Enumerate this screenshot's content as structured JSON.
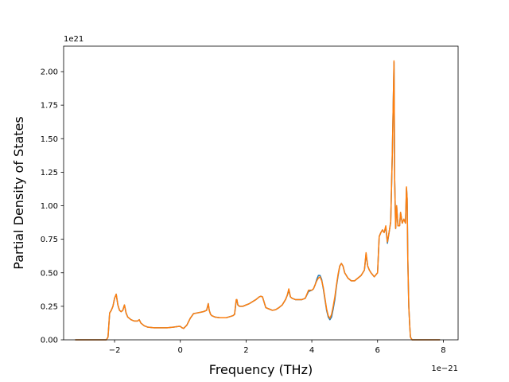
{
  "chart_data": {
    "type": "line",
    "title": "",
    "xlabel": "Frequency (THz)",
    "ylabel": "Partial Density of States",
    "x_offset_label": "1e−21",
    "y_offset_label": "1e21",
    "xlim": [
      -3.55,
      8.45
    ],
    "ylim": [
      0.0,
      2.19
    ],
    "x_ticks": [
      -2,
      0,
      2,
      4,
      6,
      8
    ],
    "x_tick_labels": [
      "−2",
      "0",
      "2",
      "4",
      "6",
      "8"
    ],
    "y_ticks": [
      0.0,
      0.25,
      0.5,
      0.75,
      1.0,
      1.25,
      1.5,
      1.75,
      2.0
    ],
    "y_tick_labels": [
      "0.00",
      "0.25",
      "0.50",
      "0.75",
      "1.00",
      "1.25",
      "1.50",
      "1.75",
      "2.00"
    ],
    "grid": false,
    "legend": "none",
    "series": [
      {
        "color": "#1f77b4",
        "x": [
          -3.2,
          -2.3,
          -2.25,
          -2.2,
          -2.15,
          -2.1,
          -2.05,
          -2.0,
          -1.95,
          -1.9,
          -1.85,
          -1.8,
          -1.75,
          -1.7,
          -1.65,
          -1.6,
          -1.55,
          -1.5,
          -1.45,
          -1.4,
          -1.3,
          -1.25,
          -1.2,
          -1.1,
          -1.0,
          -0.8,
          -0.6,
          -0.4,
          -0.2,
          -0.05,
          0.0,
          0.05,
          0.1,
          0.2,
          0.3,
          0.4,
          0.5,
          0.6,
          0.7,
          0.8,
          0.85,
          0.88,
          0.92,
          0.96,
          1.05,
          1.2,
          1.4,
          1.6,
          1.65,
          1.7,
          1.72,
          1.75,
          1.8,
          1.9,
          2.1,
          2.3,
          2.4,
          2.45,
          2.5,
          2.6,
          2.7,
          2.8,
          2.9,
          3.0,
          3.1,
          3.2,
          3.25,
          3.3,
          3.35,
          3.4,
          3.5,
          3.6,
          3.7,
          3.8,
          3.9,
          4.0,
          4.05,
          4.1,
          4.15,
          4.2,
          4.25,
          4.3,
          4.35,
          4.4,
          4.45,
          4.5,
          4.55,
          4.6,
          4.65,
          4.7,
          4.75,
          4.8,
          4.85,
          4.9,
          4.95,
          5.0,
          5.05,
          5.1,
          5.2,
          5.3,
          5.4,
          5.5,
          5.6,
          5.65,
          5.7,
          5.75,
          5.8,
          5.9,
          6.0,
          6.05,
          6.1,
          6.15,
          6.2,
          6.25,
          6.3,
          6.35,
          6.4,
          6.45,
          6.5,
          6.52,
          6.55,
          6.58,
          6.62,
          6.67,
          6.7,
          6.75,
          6.8,
          6.85,
          6.88,
          6.9,
          6.92,
          6.95,
          6.98,
          7.0,
          7.05,
          7.1,
          7.2,
          7.5,
          7.9
        ],
        "y": [
          0.0,
          0.0,
          0.0,
          0.02,
          0.2,
          0.22,
          0.25,
          0.31,
          0.34,
          0.26,
          0.22,
          0.21,
          0.22,
          0.26,
          0.2,
          0.17,
          0.16,
          0.15,
          0.145,
          0.14,
          0.14,
          0.15,
          0.125,
          0.105,
          0.095,
          0.09,
          0.09,
          0.09,
          0.095,
          0.1,
          0.1,
          0.09,
          0.085,
          0.11,
          0.16,
          0.195,
          0.2,
          0.205,
          0.21,
          0.22,
          0.27,
          0.22,
          0.19,
          0.18,
          0.17,
          0.165,
          0.165,
          0.18,
          0.19,
          0.29,
          0.3,
          0.26,
          0.25,
          0.25,
          0.27,
          0.3,
          0.32,
          0.325,
          0.32,
          0.24,
          0.23,
          0.22,
          0.225,
          0.24,
          0.26,
          0.3,
          0.33,
          0.37,
          0.32,
          0.31,
          0.3,
          0.3,
          0.3,
          0.31,
          0.36,
          0.37,
          0.38,
          0.41,
          0.45,
          0.48,
          0.48,
          0.45,
          0.38,
          0.3,
          0.22,
          0.17,
          0.15,
          0.17,
          0.23,
          0.3,
          0.4,
          0.48,
          0.55,
          0.57,
          0.55,
          0.5,
          0.48,
          0.46,
          0.44,
          0.44,
          0.46,
          0.48,
          0.52,
          0.64,
          0.55,
          0.52,
          0.5,
          0.47,
          0.5,
          0.77,
          0.8,
          0.82,
          0.8,
          0.84,
          0.72,
          0.8,
          0.88,
          1.4,
          2.07,
          1.2,
          0.83,
          1.0,
          0.85,
          0.85,
          0.95,
          0.87,
          0.9,
          0.87,
          1.13,
          1.05,
          0.6,
          0.25,
          0.1,
          0.02,
          0.0,
          0.0,
          0.0,
          0.0,
          0.0
        ]
      },
      {
        "color": "#ff7f0e",
        "x": [
          -3.2,
          -2.3,
          -2.25,
          -2.2,
          -2.15,
          -2.1,
          -2.05,
          -2.0,
          -1.95,
          -1.9,
          -1.85,
          -1.8,
          -1.75,
          -1.7,
          -1.65,
          -1.6,
          -1.55,
          -1.5,
          -1.45,
          -1.4,
          -1.3,
          -1.25,
          -1.2,
          -1.1,
          -1.0,
          -0.8,
          -0.6,
          -0.4,
          -0.2,
          -0.05,
          0.0,
          0.05,
          0.1,
          0.2,
          0.3,
          0.4,
          0.5,
          0.6,
          0.7,
          0.8,
          0.85,
          0.88,
          0.92,
          0.96,
          1.05,
          1.2,
          1.4,
          1.6,
          1.65,
          1.7,
          1.72,
          1.75,
          1.8,
          1.9,
          2.1,
          2.3,
          2.4,
          2.45,
          2.5,
          2.6,
          2.7,
          2.8,
          2.9,
          3.0,
          3.1,
          3.2,
          3.25,
          3.3,
          3.35,
          3.4,
          3.5,
          3.6,
          3.7,
          3.8,
          3.9,
          4.0,
          4.05,
          4.1,
          4.15,
          4.2,
          4.25,
          4.3,
          4.35,
          4.4,
          4.45,
          4.5,
          4.55,
          4.6,
          4.65,
          4.7,
          4.75,
          4.8,
          4.85,
          4.9,
          4.95,
          5.0,
          5.05,
          5.1,
          5.2,
          5.3,
          5.4,
          5.5,
          5.6,
          5.65,
          5.7,
          5.75,
          5.8,
          5.9,
          6.0,
          6.05,
          6.1,
          6.15,
          6.2,
          6.25,
          6.3,
          6.35,
          6.4,
          6.45,
          6.5,
          6.52,
          6.55,
          6.58,
          6.62,
          6.67,
          6.7,
          6.75,
          6.8,
          6.85,
          6.88,
          6.9,
          6.92,
          6.95,
          6.98,
          7.0,
          7.05,
          7.1,
          7.2,
          7.5,
          7.9
        ],
        "y": [
          0.0,
          0.0,
          0.0,
          0.02,
          0.2,
          0.22,
          0.25,
          0.31,
          0.34,
          0.26,
          0.22,
          0.21,
          0.22,
          0.26,
          0.2,
          0.17,
          0.16,
          0.15,
          0.145,
          0.14,
          0.14,
          0.15,
          0.125,
          0.105,
          0.095,
          0.09,
          0.09,
          0.09,
          0.095,
          0.1,
          0.1,
          0.09,
          0.085,
          0.11,
          0.16,
          0.195,
          0.2,
          0.205,
          0.21,
          0.22,
          0.27,
          0.22,
          0.19,
          0.18,
          0.17,
          0.165,
          0.165,
          0.18,
          0.19,
          0.3,
          0.3,
          0.26,
          0.25,
          0.25,
          0.27,
          0.3,
          0.32,
          0.325,
          0.32,
          0.24,
          0.23,
          0.22,
          0.225,
          0.24,
          0.26,
          0.3,
          0.33,
          0.38,
          0.32,
          0.31,
          0.3,
          0.3,
          0.3,
          0.31,
          0.37,
          0.37,
          0.38,
          0.41,
          0.44,
          0.46,
          0.47,
          0.44,
          0.39,
          0.31,
          0.23,
          0.18,
          0.16,
          0.19,
          0.25,
          0.32,
          0.41,
          0.49,
          0.55,
          0.57,
          0.55,
          0.5,
          0.48,
          0.46,
          0.44,
          0.44,
          0.46,
          0.48,
          0.52,
          0.65,
          0.55,
          0.52,
          0.5,
          0.47,
          0.5,
          0.77,
          0.8,
          0.82,
          0.8,
          0.85,
          0.73,
          0.8,
          0.88,
          1.4,
          2.08,
          1.2,
          0.83,
          1.0,
          0.85,
          0.85,
          0.95,
          0.87,
          0.9,
          0.87,
          1.14,
          1.05,
          0.6,
          0.25,
          0.1,
          0.02,
          0.0,
          0.0,
          0.0,
          0.0,
          0.0
        ]
      }
    ]
  }
}
